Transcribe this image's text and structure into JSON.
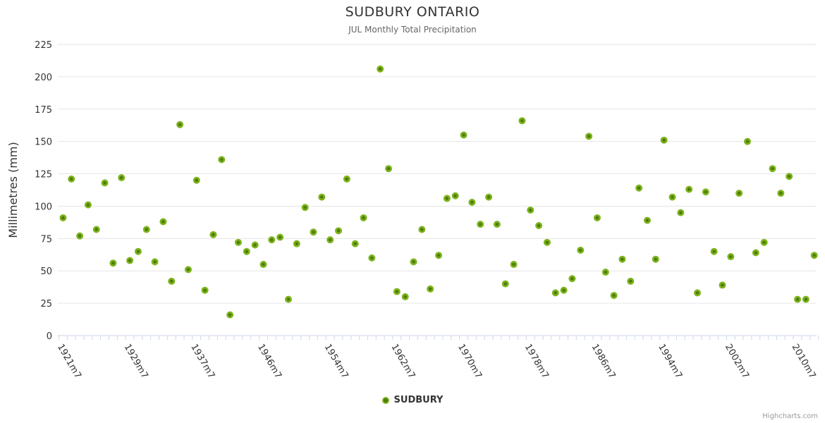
{
  "chart": {
    "title": "SUDBURY ONTARIO",
    "subtitle": "JUL Monthly Total Precipitation",
    "credits": "Highcharts.com"
  },
  "legend": {
    "items": [
      {
        "label": "SUDBURY",
        "marker_color": "#7db41c"
      }
    ]
  },
  "chart_data": {
    "type": "scatter",
    "title": "SUDBURY ONTARIO",
    "subtitle": "JUL Monthly Total Precipitation",
    "xlabel": "",
    "ylabel": "Millimetres (mm)",
    "ylim": [
      0,
      225
    ],
    "ytick_interval": 25,
    "ytick_labels": [
      "0",
      "25",
      "50",
      "75",
      "100",
      "125",
      "150",
      "175",
      "200",
      "225"
    ],
    "xtick_label_step": 8,
    "visible_xtick_labels": [
      "1921m7",
      "1929m7",
      "1937m7",
      "1946m7",
      "1954m7",
      "1962m7",
      "1970m7",
      "1978m7",
      "1986m7",
      "1994m7",
      "2002m7",
      "2010m7"
    ],
    "grid": "horizontal",
    "gridline_color": "#e6e6e6",
    "axis_line_color": "#ccd6eb",
    "legend_position": "bottom-center",
    "series": [
      {
        "name": "SUDBURY",
        "color": "#7db41c",
        "marker_core_color": "#4e7a0a",
        "categories": [
          "1921m7",
          "1922m7",
          "1923m7",
          "1924m7",
          "1925m7",
          "1926m7",
          "1927m7",
          "1928m7",
          "1929m7",
          "1930m7",
          "1931m7",
          "1932m7",
          "1933m7",
          "1934m7",
          "1935m7",
          "1936m7",
          "1937m7",
          "1938m7",
          "1939m7",
          "1940m7",
          "1941m7",
          "1942m7",
          "1943m7",
          "1944m7",
          "1946m7",
          "1947m7",
          "1948m7",
          "1949m7",
          "1950m7",
          "1951m7",
          "1952m7",
          "1953m7",
          "1954m7",
          "1955m7",
          "1956m7",
          "1957m7",
          "1958m7",
          "1959m7",
          "1960m7",
          "1961m7",
          "1962m7",
          "1963m7",
          "1964m7",
          "1965m7",
          "1966m7",
          "1967m7",
          "1968m7",
          "1969m7",
          "1970m7",
          "1971m7",
          "1972m7",
          "1973m7",
          "1974m7",
          "1975m7",
          "1976m7",
          "1977m7",
          "1978m7",
          "1979m7",
          "1980m7",
          "1981m7",
          "1982m7",
          "1983m7",
          "1984m7",
          "1985m7",
          "1986m7",
          "1987m7",
          "1988m7",
          "1989m7",
          "1990m7",
          "1991m7",
          "1992m7",
          "1993m7",
          "1994m7",
          "1995m7",
          "1996m7",
          "1997m7",
          "1998m7",
          "1999m7",
          "2000m7",
          "2001m7",
          "2002m7",
          "2003m7",
          "2004m7",
          "2005m7",
          "2006m7",
          "2007m7",
          "2008m7",
          "2009m7",
          "2010m7",
          "2011m7",
          "2012m7"
        ],
        "values": [
          91,
          121,
          77,
          101,
          82,
          118,
          56,
          122,
          58,
          65,
          82,
          57,
          88,
          42,
          163,
          51,
          120,
          35,
          78,
          136,
          16,
          72,
          65,
          70,
          55,
          74,
          76,
          28,
          71,
          99,
          80,
          107,
          74,
          81,
          121,
          71,
          91,
          60,
          206,
          129,
          34,
          30,
          57,
          82,
          36,
          62,
          106,
          108,
          155,
          103,
          86,
          107,
          86,
          40,
          55,
          166,
          97,
          85,
          72,
          33,
          35,
          44,
          66,
          154,
          91,
          49,
          31,
          59,
          42,
          114,
          89,
          59,
          151,
          107,
          95,
          113,
          33,
          111,
          65,
          39,
          61,
          110,
          150,
          64,
          72,
          129,
          110,
          123,
          28,
          28,
          62
        ]
      }
    ]
  }
}
